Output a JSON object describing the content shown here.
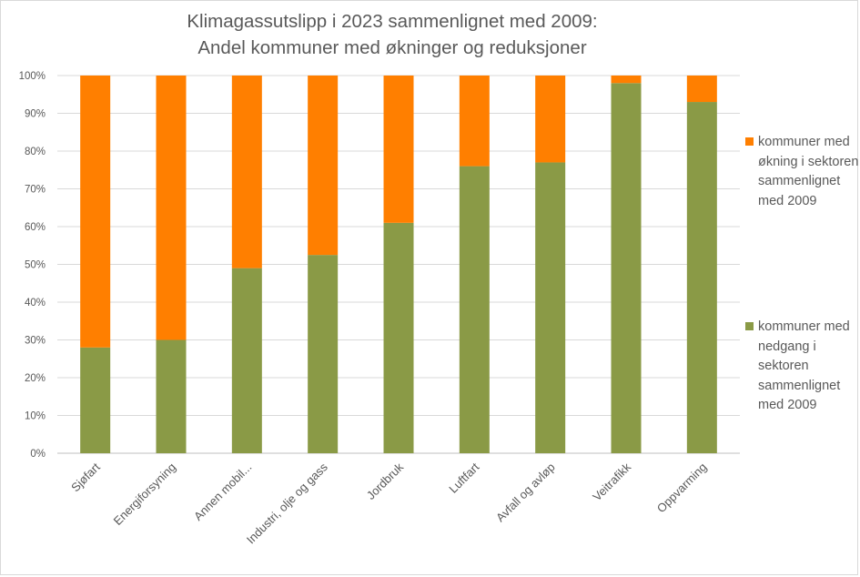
{
  "chart_data": {
    "type": "bar",
    "stacked": true,
    "title_lines": [
      "Klimagassutslipp i 2023 sammenlignet med 2009:",
      "Andel kommuner med økninger og reduksjoner"
    ],
    "categories": [
      "Sjøfart",
      "Energiforsyning",
      "Annen mobil...",
      "Industri, olje og gass",
      "Jordbruk",
      "Luftfart",
      "Avfall og avløp",
      "Veitrafikk",
      "Oppvarming"
    ],
    "series": [
      {
        "name": "kommuner med nedgang i sektoren sammenlignet med 2009",
        "color": "#8a9a46",
        "values": [
          28,
          30,
          49,
          52.5,
          61,
          76,
          77,
          98,
          93
        ]
      },
      {
        "name": "kommuner med økning i sektoren sammenlignet med 2009",
        "color": "#ff7f00",
        "values": [
          72,
          70,
          51,
          47.5,
          39,
          24,
          23,
          2,
          7
        ]
      }
    ],
    "ylim": [
      0,
      100
    ],
    "yticks": [
      0,
      10,
      20,
      30,
      40,
      50,
      60,
      70,
      80,
      90,
      100
    ],
    "ytick_labels": [
      "0%",
      "10%",
      "20%",
      "30%",
      "40%",
      "50%",
      "60%",
      "70%",
      "80%",
      "90%",
      "100%"
    ],
    "xlabel": "",
    "ylabel": "",
    "grid": true,
    "legend_position": "right"
  },
  "legend": {
    "items": [
      {
        "label": "kommuner med økning i sektoren sammenlignet med 2009",
        "color": "#ff7f00"
      },
      {
        "label": "kommuner med nedgang i sektoren sammenlignet med 2009",
        "color": "#8a9a46"
      }
    ]
  }
}
